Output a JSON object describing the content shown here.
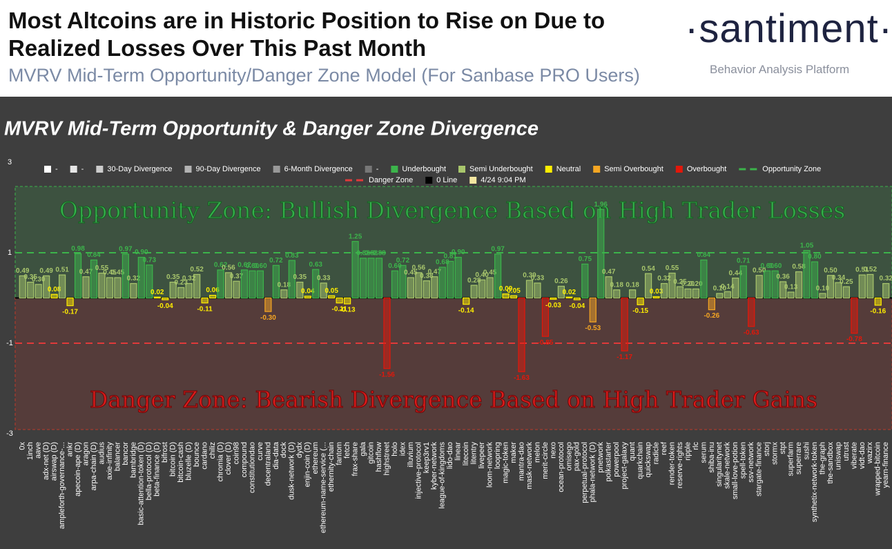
{
  "header": {
    "title": [
      "Most Altcoins are in Historic Position to Rise on Due to",
      "Realized Losses Over This Past Month"
    ],
    "subtitle": "MVRV Mid-Term Opportunity/Danger Zone Model (For Sanbase PRO Users)",
    "logo": "·santiment·",
    "tagline": "Behavior Analysis Platform"
  },
  "chart_data": {
    "type": "bar",
    "title": "MVRV Mid-Term Opportunity & Danger Zone Divergence",
    "annotations": [
      "Opportunity Zone: Bullish Divergence Based on High Trader Losses",
      "Danger Zone: Bearish Divergence Based on High Trader Gains"
    ],
    "legend": [
      {
        "name": "-",
        "color": "#ffffff"
      },
      {
        "name": "-",
        "color": "#e6e6e6"
      },
      {
        "name": "30-Day Divergence",
        "color": "#cccccc"
      },
      {
        "name": "90-Day Divergence",
        "color": "#b3b3b3"
      },
      {
        "name": "6-Month Divergence",
        "color": "#999999"
      },
      {
        "name": "-",
        "color": "#777777"
      },
      {
        "name": "Underbought",
        "color": "#3cb44b"
      },
      {
        "name": "Semi Underbought",
        "color": "#a8c66c"
      },
      {
        "name": "Neutral",
        "color": "#ffee00"
      },
      {
        "name": "Semi Overbought",
        "color": "#f5a623"
      },
      {
        "name": "Overbought",
        "color": "#e3170a"
      },
      {
        "name": "Opportunity Zone",
        "color": "#3cb44b",
        "marker": "line"
      },
      {
        "name": "Danger Zone",
        "color": "#e03a3a",
        "marker": "line"
      },
      {
        "name": "0 Line",
        "color": "#000000"
      },
      {
        "name": "4/24 9:04 PM",
        "color": "#f3e6a0"
      }
    ],
    "reference_lines": [
      {
        "name": "Opportunity Zone",
        "value": 1,
        "color": "#3cb44b"
      },
      {
        "name": "Danger Zone",
        "value": -1,
        "color": "#e03a3a"
      },
      {
        "name": "0 Line",
        "value": 0,
        "color": "#000000"
      }
    ],
    "ylim": [
      -3,
      3
    ],
    "yticks": [
      3,
      1,
      -1,
      -3
    ],
    "categories": [
      "0x",
      "1inch",
      "aave",
      "adx-net (D)",
      "airswap (D)",
      "ampleforth-governance-...",
      "ankr",
      "apecoin-ape (D)",
      "aragon",
      "arpa-chain (D)",
      "audius",
      "axie-infinity",
      "balancer",
      "bancor",
      "bambridge",
      "basic-attention-token (D)",
      "bella-protocol (D)",
      "beta-finance (D)",
      "bifrost",
      "bitcoin (D)",
      "bitcoin-cash",
      "bluzelle (D)",
      "bounce",
      "cardano",
      "chiliz",
      "chromia (D)",
      "clover (D)",
      "coin98",
      "compound",
      "constitutiondao",
      "curve",
      "decentraland",
      "dia-data",
      "dock",
      "dusk-network (D)",
      "dydx",
      "enjin-coin (D)",
      "ethereum",
      "ethereum-name-service (...",
      "ethernity-chain",
      "fantom",
      "fetch",
      "frax-share",
      "gala",
      "gitcoin",
      "hashflow",
      "highstreet",
      "holo",
      "idex",
      "illuvium",
      "injective-protocol",
      "keep3rv1",
      "kyber-network",
      "league-of-kingdoms",
      "lido-dao",
      "linear",
      "litecoin",
      "litentry",
      "livepeer",
      "loom-network",
      "loopring",
      "magic-token",
      "maker",
      "mantra-dao",
      "mask-network",
      "melon",
      "merit-circle",
      "nexo",
      "ocean-protocol",
      "omisego",
      "pax-gold",
      "perpetual-protocol",
      "phala-network (D)",
      "pnetwork",
      "polkastarter",
      "powerpool",
      "project-galaxy",
      "quant",
      "quarkchain",
      "quickswap",
      "radicle",
      "reef",
      "render-token",
      "reserve-rights",
      "ripple",
      "rlc",
      "serum",
      "shiba-inu",
      "singularitynet",
      "skale-network",
      "small-love-potion",
      "spell-token",
      "ssv-network",
      "stargate-finance",
      "storj",
      "stormx",
      "stpt",
      "superfarm",
      "superrare",
      "sushi",
      "synthetix-network-token",
      "the-graph",
      "the-sandbox",
      "uniswap",
      "utrust",
      "viberate",
      "vidt-dao",
      "wazirx",
      "wrapped-bitcoin",
      "yearn-finance"
    ],
    "values": [
      0.49,
      0.35,
      0.3,
      0.49,
      0.08,
      0.51,
      -0.17,
      0.98,
      0.47,
      0.84,
      0.55,
      0.45,
      0.45,
      0.97,
      0.32,
      0.9,
      0.73,
      0.02,
      -0.04,
      0.35,
      0.23,
      0.32,
      0.52,
      -0.11,
      0.06,
      0.62,
      0.56,
      0.37,
      0.62,
      0.6,
      0.6,
      -0.3,
      0.72,
      0.18,
      0.83,
      0.35,
      0.04,
      0.63,
      0.33,
      0.05,
      -0.11,
      -0.13,
      1.25,
      0.88,
      0.88,
      0.88,
      -1.56,
      0.6,
      0.72,
      0.45,
      0.56,
      0.38,
      0.47,
      0.68,
      0.81,
      0.9,
      -0.14,
      0.28,
      0.4,
      0.45,
      0.97,
      0.09,
      0.05,
      -1.63,
      0.39,
      0.33,
      -0.85,
      -0.03,
      0.26,
      0.02,
      -0.04,
      0.75,
      -0.53,
      1.96,
      0.47,
      0.18,
      -1.17,
      0.18,
      -0.15,
      0.54,
      0.03,
      0.32,
      0.55,
      0.25,
      0.2,
      0.2,
      0.84,
      -0.26,
      0.1,
      0.14,
      0.44,
      0.71,
      -0.63,
      0.5,
      0.6,
      0.6,
      0.36,
      0.13,
      0.58,
      1.05,
      0.8,
      0.1,
      0.5,
      0.34,
      0.25,
      -0.78,
      0.51,
      0.52,
      -0.16,
      0.32
    ],
    "value_labels": [
      "0.49",
      "0.35",
      "0.30",
      "0.49",
      "0.08",
      "0.51",
      "-0.17",
      "0.98",
      "0.47",
      "0.84",
      "0.55",
      "0.45",
      "0.45",
      "0.97",
      "0.32",
      "0.90",
      "0.73",
      "0.02",
      "-0.04",
      "0.35",
      "0.23",
      "0.32",
      "0.52",
      "-0.11",
      "0.06",
      "0.62",
      "0.56",
      "0.37",
      "0.62",
      "0.60",
      "0.60",
      "-0.30",
      "0.72",
      "0.18",
      "0.83",
      "0.35",
      "0.04",
      "0.63",
      "0.33",
      "0.05",
      "-0.11",
      "-0.13",
      "1.25",
      "0.88",
      "0.88",
      "0.88",
      "-1.56",
      "0.60",
      "0.72",
      "0.45",
      "0.56",
      "0.38",
      "0.47",
      "0.68",
      "0.81",
      "0.90",
      "-0.14",
      "0.28",
      "0.40",
      "0.45",
      "0.97",
      "0.09",
      "0.05",
      "-1.63",
      "0.39",
      "0.33",
      "-0.85",
      "-0.03",
      "0.26",
      "0.02",
      "-0.04",
      "0.75",
      "-0.53",
      "1.96",
      "0.47",
      "0.18",
      "-1.17",
      "0.18",
      "-0.15",
      "0.54",
      "0.03",
      "0.32",
      "0.55",
      "0.25",
      "0.20",
      "0.20",
      "0.84",
      "-0.26",
      "0.10",
      "0.14",
      "0.44",
      "0.71",
      "-0.63",
      "0.50",
      "0.60",
      "0.60",
      "0.36",
      "0.13",
      "0.58",
      "1.05",
      "0.80",
      "0.10",
      "0.50",
      "0.34",
      "0.25",
      "-0.78",
      "0.51",
      "0.52",
      "-0.16",
      "0.32"
    ],
    "colors": [
      "#a8c66c",
      "#a8c66c",
      "#a8c66c",
      "#a8c66c",
      "#ffee00",
      "#a8c66c",
      "#ffee00",
      "#3cb44b",
      "#a8c66c",
      "#3cb44b",
      "#a8c66c",
      "#a8c66c",
      "#a8c66c",
      "#3cb44b",
      "#a8c66c",
      "#3cb44b",
      "#3cb44b",
      "#ffee00",
      "#ffee00",
      "#a8c66c",
      "#a8c66c",
      "#a8c66c",
      "#a8c66c",
      "#ffee00",
      "#ffee00",
      "#3cb44b",
      "#a8c66c",
      "#a8c66c",
      "#3cb44b",
      "#3cb44b",
      "#3cb44b",
      "#f5a623",
      "#3cb44b",
      "#a8c66c",
      "#3cb44b",
      "#a8c66c",
      "#ffee00",
      "#3cb44b",
      "#a8c66c",
      "#ffee00",
      "#ffee00",
      "#ffee00",
      "#3cb44b",
      "#3cb44b",
      "#3cb44b",
      "#3cb44b",
      "#e3170a",
      "#3cb44b",
      "#3cb44b",
      "#a8c66c",
      "#a8c66c",
      "#a8c66c",
      "#a8c66c",
      "#3cb44b",
      "#3cb44b",
      "#3cb44b",
      "#ffee00",
      "#a8c66c",
      "#a8c66c",
      "#a8c66c",
      "#3cb44b",
      "#ffee00",
      "#ffee00",
      "#e3170a",
      "#a8c66c",
      "#a8c66c",
      "#e3170a",
      "#ffee00",
      "#a8c66c",
      "#ffee00",
      "#ffee00",
      "#3cb44b",
      "#f5a623",
      "#3cb44b",
      "#a8c66c",
      "#a8c66c",
      "#e3170a",
      "#a8c66c",
      "#ffee00",
      "#a8c66c",
      "#ffee00",
      "#a8c66c",
      "#a8c66c",
      "#a8c66c",
      "#a8c66c",
      "#a8c66c",
      "#3cb44b",
      "#f5a623",
      "#a8c66c",
      "#a8c66c",
      "#a8c66c",
      "#3cb44b",
      "#e3170a",
      "#a8c66c",
      "#3cb44b",
      "#3cb44b",
      "#a8c66c",
      "#a8c66c",
      "#a8c66c",
      "#3cb44b",
      "#3cb44b",
      "#a8c66c",
      "#a8c66c",
      "#a8c66c",
      "#a8c66c",
      "#e3170a",
      "#a8c66c",
      "#a8c66c",
      "#ffee00",
      "#a8c66c"
    ]
  }
}
